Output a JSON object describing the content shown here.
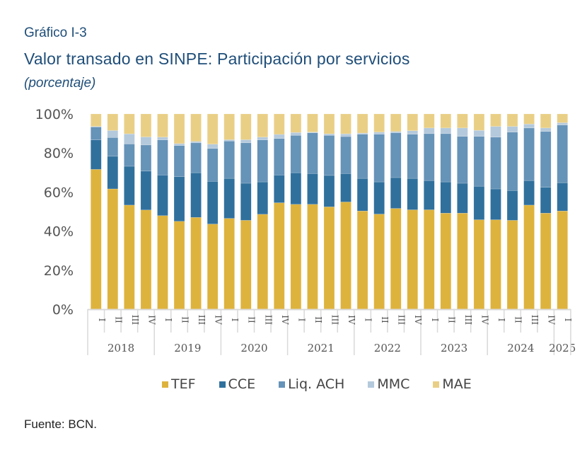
{
  "header": {
    "label": "Gráfico I-3",
    "title": "Valor transado en SINPE: Participación por servicios",
    "unit": "(porcentaje)"
  },
  "footer": {
    "source": "Fuente: BCN."
  },
  "chart_data": {
    "type": "bar",
    "stacked": true,
    "title": "Valor transado en SINPE: Participación por servicios",
    "subtitle": "(porcentaje)",
    "xlabel": "",
    "ylabel": "",
    "ylim": [
      0,
      100
    ],
    "yticks": [
      "0%",
      "20%",
      "40%",
      "60%",
      "80%",
      "100%"
    ],
    "grid": false,
    "legend_position": "bottom",
    "categories": [
      "2018 I",
      "2018 II",
      "2018 III",
      "2018 IV",
      "2019 I",
      "2019 II",
      "2019 III",
      "2019 IV",
      "2020 I",
      "2020 II",
      "2020 III",
      "2020 IV",
      "2021 I",
      "2021 II",
      "2021 III",
      "2021 IV",
      "2022 I",
      "2022 II",
      "2022 III",
      "2022 IV",
      "2023 I",
      "2023 II",
      "2023 III",
      "2023 IV",
      "2024 I",
      "2024 II",
      "2024 III",
      "2024 IV",
      "2025 I"
    ],
    "quarter_labels": [
      "I",
      "II",
      "III",
      "IV",
      "I",
      "II",
      "III",
      "IV",
      "I",
      "II",
      "III",
      "IV",
      "I",
      "II",
      "III",
      "IV",
      "I",
      "II",
      "III",
      "IV",
      "I",
      "II",
      "III",
      "IV",
      "I",
      "II",
      "III",
      "IV",
      "I"
    ],
    "year_groups": [
      {
        "label": "2018",
        "count": 4
      },
      {
        "label": "2019",
        "count": 4
      },
      {
        "label": "2020",
        "count": 4
      },
      {
        "label": "2021",
        "count": 4
      },
      {
        "label": "2022",
        "count": 4
      },
      {
        "label": "2023",
        "count": 4
      },
      {
        "label": "2024",
        "count": 4
      },
      {
        "label": "2025",
        "count": 1
      }
    ],
    "series": [
      {
        "name": "TEF",
        "color": "#deb33d",
        "values": [
          71.6,
          61.6,
          53.3,
          50.8,
          47.9,
          45.0,
          47.0,
          43.6,
          46.5,
          45.5,
          48.6,
          54.5,
          53.7,
          53.7,
          52.4,
          54.9,
          50.3,
          48.7,
          51.6,
          50.9,
          50.9,
          49.2,
          49.2,
          45.8,
          45.8,
          45.5,
          53.3,
          49.2,
          50.3
        ]
      },
      {
        "name": "CCE",
        "color": "#30709d",
        "values": [
          15.1,
          16.7,
          19.9,
          19.9,
          20.8,
          22.9,
          22.9,
          21.9,
          20.5,
          19.0,
          16.6,
          14.2,
          16.2,
          15.8,
          16.1,
          14.6,
          16.7,
          16.5,
          15.8,
          16.1,
          15.0,
          16.0,
          15.3,
          17.2,
          15.8,
          15.3,
          12.6,
          13.2,
          14.5
        ]
      },
      {
        "name": "Liq. ACH",
        "color": "#6693b8",
        "values": [
          6.6,
          9.6,
          11.4,
          13.4,
          18.0,
          15.9,
          15.3,
          16.8,
          19.1,
          20.7,
          21.5,
          18.7,
          19.1,
          20.8,
          20.5,
          18.9,
          22.6,
          24.4,
          22.9,
          22.6,
          24.0,
          24.7,
          24.0,
          25.5,
          26.5,
          29.9,
          26.9,
          28.6,
          29.5
        ]
      },
      {
        "name": "MMC",
        "color": "#b4c9dc",
        "values": [
          0.3,
          3.6,
          5.2,
          4.1,
          1.4,
          1.0,
          0.7,
          2.2,
          0.7,
          1.6,
          1.4,
          2.1,
          1.5,
          0.4,
          0.8,
          1.4,
          0.6,
          1.1,
          0.7,
          1.8,
          2.9,
          2.9,
          4.3,
          3.1,
          5.5,
          2.9,
          2.0,
          1.8,
          1.2
        ]
      },
      {
        "name": "MAE",
        "color": "#e9cf86",
        "values": [
          6.4,
          8.5,
          10.2,
          11.8,
          11.9,
          15.2,
          14.1,
          15.5,
          13.2,
          13.2,
          11.9,
          10.5,
          9.5,
          9.3,
          10.2,
          10.2,
          9.8,
          9.3,
          9.0,
          8.6,
          7.2,
          7.2,
          7.2,
          8.4,
          6.4,
          6.4,
          5.2,
          7.2,
          4.5
        ]
      }
    ]
  }
}
